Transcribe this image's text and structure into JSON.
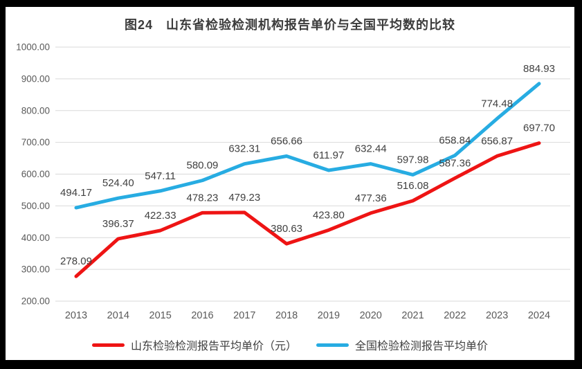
{
  "title": "图24　山东省检验检测机构报告单价与全国平均数的比较",
  "chart_data": {
    "type": "line",
    "categories": [
      "2013",
      "2014",
      "2015",
      "2016",
      "2017",
      "2018",
      "2019",
      "2020",
      "2021",
      "2022",
      "2023",
      "2024"
    ],
    "series": [
      {
        "name": "山东检验检测报告平均单价（元）",
        "color": "#ee1414",
        "values": [
          278.09,
          396.37,
          422.33,
          478.23,
          479.23,
          380.63,
          423.8,
          477.36,
          516.08,
          587.36,
          656.87,
          697.7
        ]
      },
      {
        "name": "全国检验检测报告平均单价",
        "color": "#27ace2",
        "values": [
          494.17,
          524.4,
          547.11,
          580.09,
          632.31,
          656.66,
          611.97,
          632.44,
          597.98,
          658.84,
          774.48,
          884.93
        ]
      }
    ],
    "title": "图24　山东省检验检测机构报告单价与全国平均数的比较",
    "xlabel": "",
    "ylabel": "",
    "ylim": [
      200,
      1000
    ],
    "ytick_step": 100,
    "ytick_labels": [
      "200.00",
      "300.00",
      "400.00",
      "500.00",
      "600.00",
      "700.00",
      "800.00",
      "900.00",
      "1000.00"
    ],
    "grid": true,
    "grid_color": "#d9d9d9",
    "axis_text_color": "#595959",
    "data_label_color": "#404040",
    "data_labels": true,
    "label_decimals": 2,
    "legend_position": "bottom",
    "line_width": 5
  }
}
